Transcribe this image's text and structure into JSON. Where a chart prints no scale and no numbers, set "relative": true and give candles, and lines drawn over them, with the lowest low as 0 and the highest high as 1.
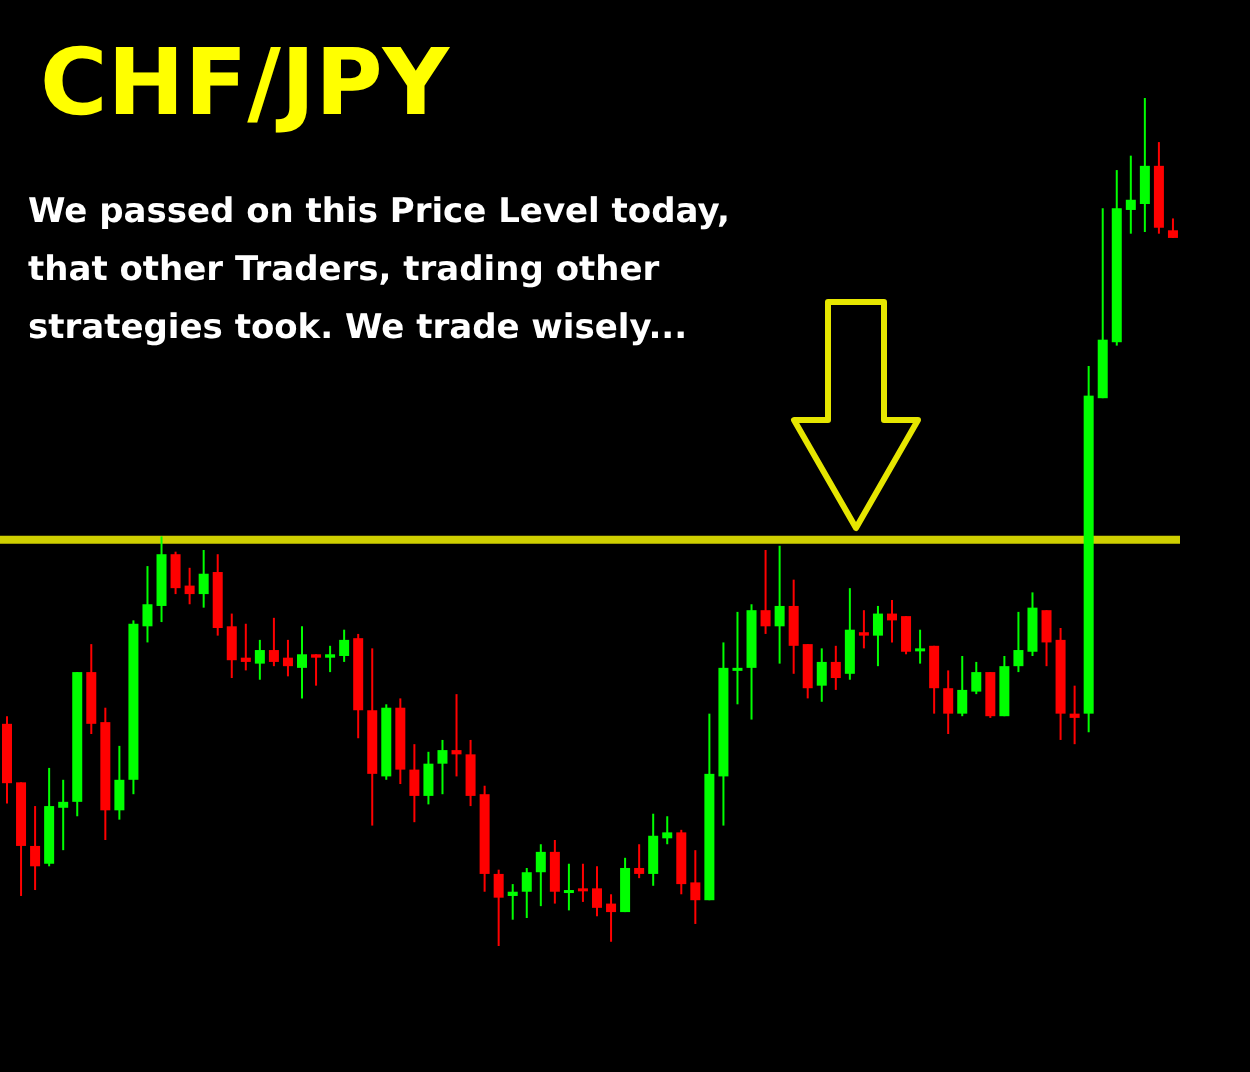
{
  "chart_data": {
    "type": "candlestick",
    "title": "CHF/JPY",
    "relative": true,
    "annotations": [
      "We passed on this Price Level today, that other Traders, trading other strategies took. We trade wisely..."
    ],
    "categories": [
      null,
      null,
      null,
      null,
      null,
      null,
      null,
      null,
      null,
      null,
      null,
      null,
      null,
      null,
      null,
      null,
      null,
      null,
      null,
      null,
      null,
      null,
      null,
      null,
      null,
      null,
      null,
      null,
      null,
      null,
      null,
      null,
      null,
      null,
      null,
      null,
      null,
      null,
      null,
      null,
      null,
      null,
      null,
      null,
      null,
      null,
      null,
      null,
      null,
      null,
      null,
      null,
      null,
      null,
      null,
      null,
      null,
      null,
      null,
      null,
      null,
      null,
      null,
      null,
      null,
      null,
      null,
      null,
      null,
      null,
      null,
      null,
      null,
      null,
      null,
      null,
      null,
      null,
      null,
      null,
      null,
      null,
      null,
      null
    ],
    "ohlc": [
      [
        0.262,
        0.271,
        0.168,
        0.192
      ],
      [
        0.193,
        0.193,
        0.059,
        0.118
      ],
      [
        0.118,
        0.165,
        0.066,
        0.094
      ],
      [
        0.097,
        0.21,
        0.094,
        0.165
      ],
      [
        0.163,
        0.196,
        0.113,
        0.17
      ],
      [
        0.17,
        0.323,
        0.153,
        0.323
      ],
      [
        0.323,
        0.356,
        0.25,
        0.262
      ],
      [
        0.264,
        0.281,
        0.125,
        0.16
      ],
      [
        0.16,
        0.236,
        0.149,
        0.196
      ],
      [
        0.196,
        0.384,
        0.179,
        0.38
      ],
      [
        0.377,
        0.448,
        0.358,
        0.403
      ],
      [
        0.401,
        0.483,
        0.382,
        0.462
      ],
      [
        0.462,
        0.465,
        0.415,
        0.422
      ],
      [
        0.425,
        0.446,
        0.403,
        0.415
      ],
      [
        0.415,
        0.467,
        0.399,
        0.439
      ],
      [
        0.441,
        0.462,
        0.366,
        0.375
      ],
      [
        0.377,
        0.392,
        0.316,
        0.337
      ],
      [
        0.34,
        0.38,
        0.325,
        0.335
      ],
      [
        0.333,
        0.361,
        0.314,
        0.349
      ],
      [
        0.349,
        0.387,
        0.33,
        0.335
      ],
      [
        0.34,
        0.361,
        0.318,
        0.33
      ],
      [
        0.328,
        0.377,
        0.292,
        0.344
      ],
      [
        0.344,
        0.344,
        0.307,
        0.34
      ],
      [
        0.34,
        0.354,
        0.323,
        0.344
      ],
      [
        0.342,
        0.373,
        0.335,
        0.361
      ],
      [
        0.363,
        0.368,
        0.245,
        0.278
      ],
      [
        0.278,
        0.351,
        0.142,
        0.203
      ],
      [
        0.2,
        0.285,
        0.196,
        0.281
      ],
      [
        0.281,
        0.292,
        0.191,
        0.208
      ],
      [
        0.208,
        0.238,
        0.146,
        0.177
      ],
      [
        0.177,
        0.229,
        0.167,
        0.215
      ],
      [
        0.215,
        0.243,
        0.179,
        0.231
      ],
      [
        0.231,
        0.297,
        0.2,
        0.226
      ],
      [
        0.226,
        0.243,
        0.165,
        0.177
      ],
      [
        0.179,
        0.189,
        0.064,
        0.085
      ],
      [
        0.085,
        0.09,
        0,
        0.057
      ],
      [
        0.059,
        0.073,
        0.031,
        0.064
      ],
      [
        0.064,
        0.092,
        0.033,
        0.087
      ],
      [
        0.087,
        0.12,
        0.047,
        0.111
      ],
      [
        0.111,
        0.125,
        0.05,
        0.064
      ],
      [
        0.064,
        0.097,
        0.042,
        0.066
      ],
      [
        0.068,
        0.097,
        0.052,
        0.066
      ],
      [
        0.068,
        0.094,
        0.035,
        0.045
      ],
      [
        0.05,
        0.061,
        0.005,
        0.04
      ],
      [
        0.04,
        0.104,
        0.04,
        0.092
      ],
      [
        0.092,
        0.12,
        0.08,
        0.085
      ],
      [
        0.085,
        0.156,
        0.071,
        0.13
      ],
      [
        0.127,
        0.153,
        0.12,
        0.134
      ],
      [
        0.134,
        0.137,
        0.061,
        0.073
      ],
      [
        0.075,
        0.113,
        0.026,
        0.054
      ],
      [
        0.054,
        0.274,
        0.054,
        0.203
      ],
      [
        0.2,
        0.358,
        0.142,
        0.328
      ],
      [
        0.325,
        0.394,
        0.285,
        0.328
      ],
      [
        0.328,
        0.403,
        0.267,
        0.396
      ],
      [
        0.396,
        0.467,
        0.368,
        0.377
      ],
      [
        0.377,
        0.472,
        0.333,
        0.401
      ],
      [
        0.401,
        0.432,
        0.321,
        0.354
      ],
      [
        0.356,
        0.356,
        0.292,
        0.304
      ],
      [
        0.307,
        0.351,
        0.288,
        0.335
      ],
      [
        0.335,
        0.354,
        0.302,
        0.316
      ],
      [
        0.321,
        0.422,
        0.314,
        0.373
      ],
      [
        0.37,
        0.396,
        0.351,
        0.366
      ],
      [
        0.366,
        0.401,
        0.33,
        0.392
      ],
      [
        0.392,
        0.408,
        0.358,
        0.384
      ],
      [
        0.389,
        0.389,
        0.344,
        0.347
      ],
      [
        0.349,
        0.373,
        0.333,
        0.351
      ],
      [
        0.354,
        0.354,
        0.274,
        0.304
      ],
      [
        0.304,
        0.325,
        0.25,
        0.274
      ],
      [
        0.274,
        0.342,
        0.271,
        0.302
      ],
      [
        0.3,
        0.335,
        0.297,
        0.323
      ],
      [
        0.323,
        0.323,
        0.269,
        0.271
      ],
      [
        0.271,
        0.342,
        0.271,
        0.33
      ],
      [
        0.33,
        0.394,
        0.323,
        0.349
      ],
      [
        0.347,
        0.417,
        0.342,
        0.399
      ],
      [
        0.396,
        0.396,
        0.33,
        0.358
      ],
      [
        0.361,
        0.375,
        0.243,
        0.274
      ],
      [
        0.274,
        0.307,
        0.238,
        0.269
      ],
      [
        0.274,
        0.684,
        0.252,
        0.649
      ],
      [
        0.646,
        0.87,
        0.646,
        0.715
      ],
      [
        0.712,
        0.915,
        0.708,
        0.87
      ],
      [
        0.868,
        0.932,
        0.84,
        0.88
      ],
      [
        0.875,
        1,
        0.842,
        0.92
      ],
      [
        0.92,
        0.948,
        0.84,
        0.847
      ],
      [
        0.844,
        0.858,
        0.835,
        0.835
      ]
    ],
    "colors": [
      "#ff0000",
      "#ff0000",
      "#ff0000",
      "#00ff00",
      "#00ff00",
      "#00ff00",
      "#ff0000",
      "#ff0000",
      "#00ff00",
      "#00ff00",
      "#00ff00",
      "#00ff00",
      "#ff0000",
      "#ff0000",
      "#00ff00",
      "#ff0000",
      "#ff0000",
      "#ff0000",
      "#00ff00",
      "#ff0000",
      "#ff0000",
      "#00ff00",
      "#ff0000",
      "#00ff00",
      "#00ff00",
      "#ff0000",
      "#ff0000",
      "#00ff00",
      "#ff0000",
      "#ff0000",
      "#00ff00",
      "#00ff00",
      "#ff0000",
      "#ff0000",
      "#ff0000",
      "#ff0000",
      "#00ff00",
      "#00ff00",
      "#00ff00",
      "#ff0000",
      "#00ff00",
      "#ff0000",
      "#ff0000",
      "#ff0000",
      "#00ff00",
      "#ff0000",
      "#00ff00",
      "#00ff00",
      "#ff0000",
      "#ff0000",
      "#00ff00",
      "#00ff00",
      "#00ff00",
      "#00ff00",
      "#ff0000",
      "#00ff00",
      "#ff0000",
      "#ff0000",
      "#00ff00",
      "#ff0000",
      "#00ff00",
      "#ff0000",
      "#00ff00",
      "#ff0000",
      "#ff0000",
      "#00ff00",
      "#ff0000",
      "#ff0000",
      "#00ff00",
      "#00ff00",
      "#ff0000",
      "#00ff00",
      "#00ff00",
      "#00ff00",
      "#ff0000",
      "#ff0000",
      "#ff0000",
      "#00ff00",
      "#00ff00",
      "#00ff00",
      "#00ff00",
      "#00ff00",
      "#ff0000",
      "#ff0000"
    ],
    "ref_lines": [
      {
        "axis": "y",
        "value": 0.479,
        "color": "#e6e600"
      }
    ]
  }
}
